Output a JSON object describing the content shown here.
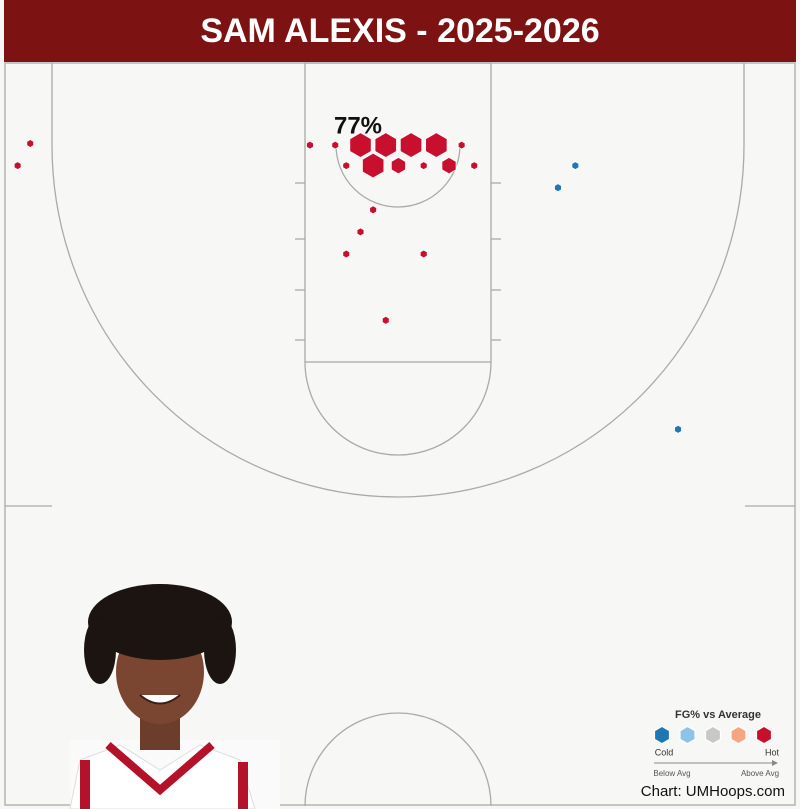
{
  "chart_data": {
    "type": "shot-chart",
    "title": "SAM ALEXIS - 2025-2026",
    "annotation": "77%",
    "credit": "Chart: UMHoops.com",
    "xlim": [
      -25,
      25
    ],
    "ylim": [
      -5.2,
      41.8
    ],
    "series": [
      {
        "name": "Hot",
        "color": "#c8102e",
        "x": [
          -2.5,
          -0.9,
          0.7,
          2.3,
          -1.7,
          -0.1,
          3.1,
          -5.7,
          -4.1,
          3.9,
          -3.4,
          1.5,
          4.7,
          -1.7,
          -2.5,
          -3.4,
          1.5,
          -0.9,
          -23.4,
          -24.2
        ],
        "y": [
          0,
          0,
          0,
          0,
          1.3,
          1.3,
          1.3,
          0,
          0,
          0,
          1.3,
          1.3,
          1.3,
          4.1,
          5.5,
          6.9,
          6.9,
          11.1,
          -0.1,
          1.3
        ],
        "sizes": [
          3,
          3,
          3,
          3,
          3,
          2,
          2,
          1,
          1,
          1,
          1,
          1,
          1,
          1,
          1,
          1,
          1,
          1,
          1,
          1
        ]
      },
      {
        "name": "Cold",
        "color": "#1f78b4",
        "x": [
          11.1,
          10.0,
          17.6
        ],
        "y": [
          1.3,
          2.7,
          18.0
        ],
        "sizes": [
          1,
          1,
          1
        ]
      }
    ],
    "legend": {
      "title": "FG% vs Average",
      "low": "Below Avg",
      "high": "Above Avg",
      "mid_colors": [
        "#8ec3e6",
        "#c8c8c8",
        "#f4a582"
      ]
    }
  }
}
